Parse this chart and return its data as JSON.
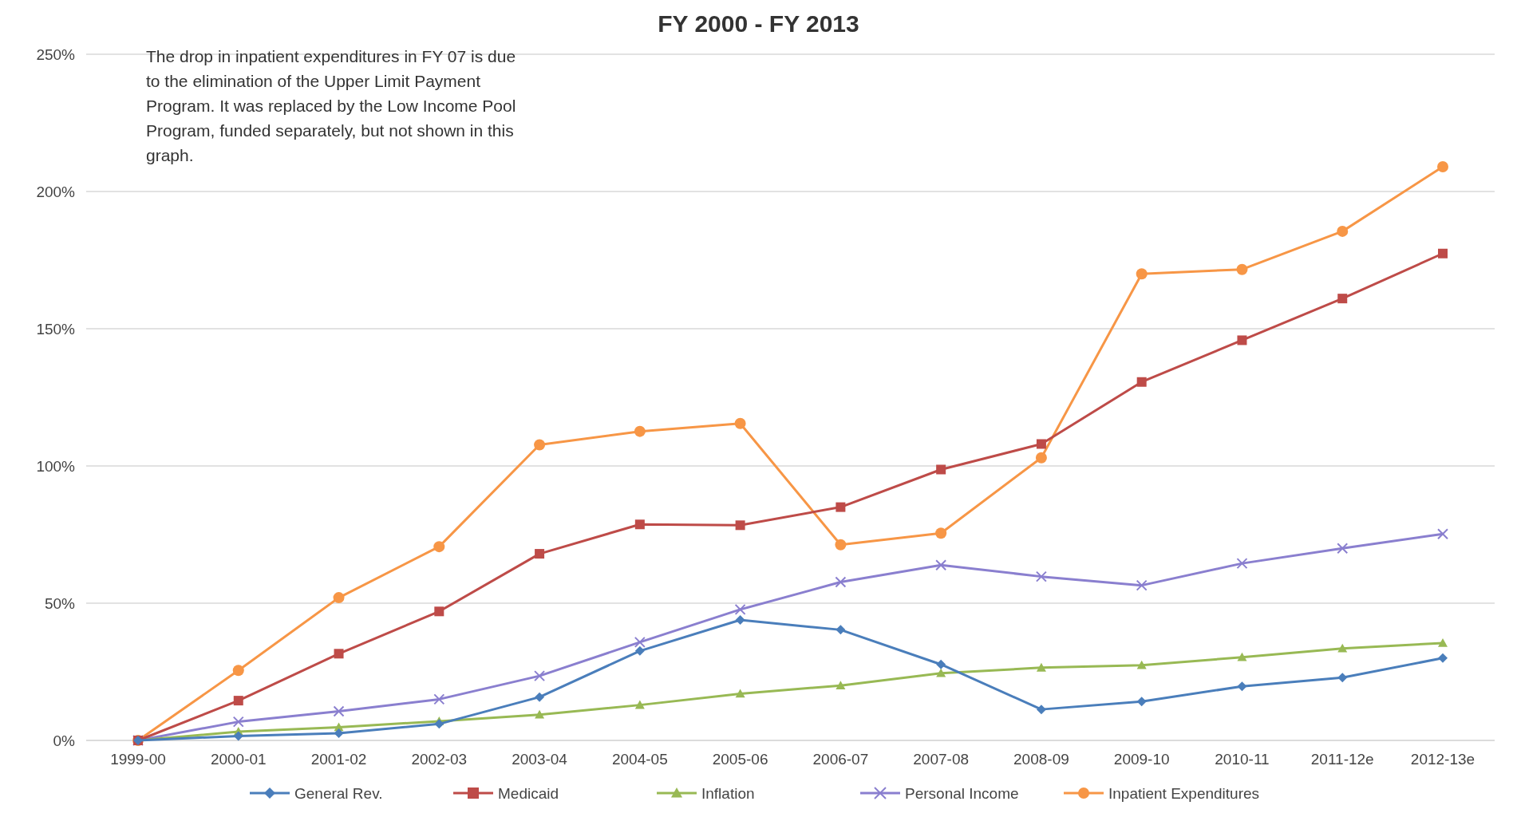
{
  "chart_data": {
    "type": "line",
    "title": "FY 2000 - FY 2013",
    "categories": [
      "1999-00",
      "2000-01",
      "2001-02",
      "2002-03",
      "2003-04",
      "2004-05",
      "2005-06",
      "2006-07",
      "2007-08",
      "2008-09",
      "2009-10",
      "2010-11",
      "2011-12e",
      "2012-13e"
    ],
    "series": [
      {
        "name": "General Rev.",
        "color": "#4a7ebb",
        "marker": "diamond",
        "values": [
          0,
          1.6,
          2.6,
          6,
          15.8,
          32.6,
          43.9,
          40.3,
          27.7,
          11.3,
          14.2,
          19.7,
          22.9,
          30
        ]
      },
      {
        "name": "Medicaid",
        "color": "#be4b48",
        "marker": "square",
        "values": [
          0,
          14.5,
          31.6,
          47,
          68,
          78.7,
          78.4,
          85,
          98.7,
          108,
          130.6,
          145.8,
          161,
          177.4
        ]
      },
      {
        "name": "Inflation",
        "color": "#98b954",
        "marker": "triangle",
        "values": [
          0,
          3.2,
          4.8,
          7,
          9.4,
          12.9,
          17,
          20,
          24.5,
          26.5,
          27.4,
          30.3,
          33.5,
          35.5
        ]
      },
      {
        "name": "Personal Income",
        "color": "#8a7fcf",
        "marker": "cross",
        "values": [
          0,
          6.8,
          10.6,
          15,
          23.5,
          35.8,
          47.7,
          57.7,
          63.9,
          59.7,
          56.5,
          64.5,
          70,
          75.2
        ]
      },
      {
        "name": "Inpatient Expenditures",
        "color": "#f79646",
        "marker": "circle",
        "values": [
          0,
          25.5,
          52,
          70.6,
          107.7,
          112.6,
          115.5,
          71.3,
          75.5,
          103,
          170,
          171.6,
          185.5,
          209
        ]
      }
    ],
    "ylim": [
      0,
      250
    ],
    "yticks": [
      {
        "value": 0,
        "label": "0%"
      },
      {
        "value": 50,
        "label": "50%"
      },
      {
        "value": 100,
        "label": "100%"
      },
      {
        "value": 150,
        "label": "150%"
      },
      {
        "value": 200,
        "label": "200%"
      },
      {
        "value": 250,
        "label": "250%"
      }
    ],
    "grid": "y",
    "legend": "bottom",
    "line_style": "solid",
    "annotations": [
      "The drop in inpatient expenditures in FY 07 is due to the elimination of the Upper Limit Payment Program.  It was replaced by the Low Income Pool Program, funded separately, but not shown in this graph."
    ]
  }
}
